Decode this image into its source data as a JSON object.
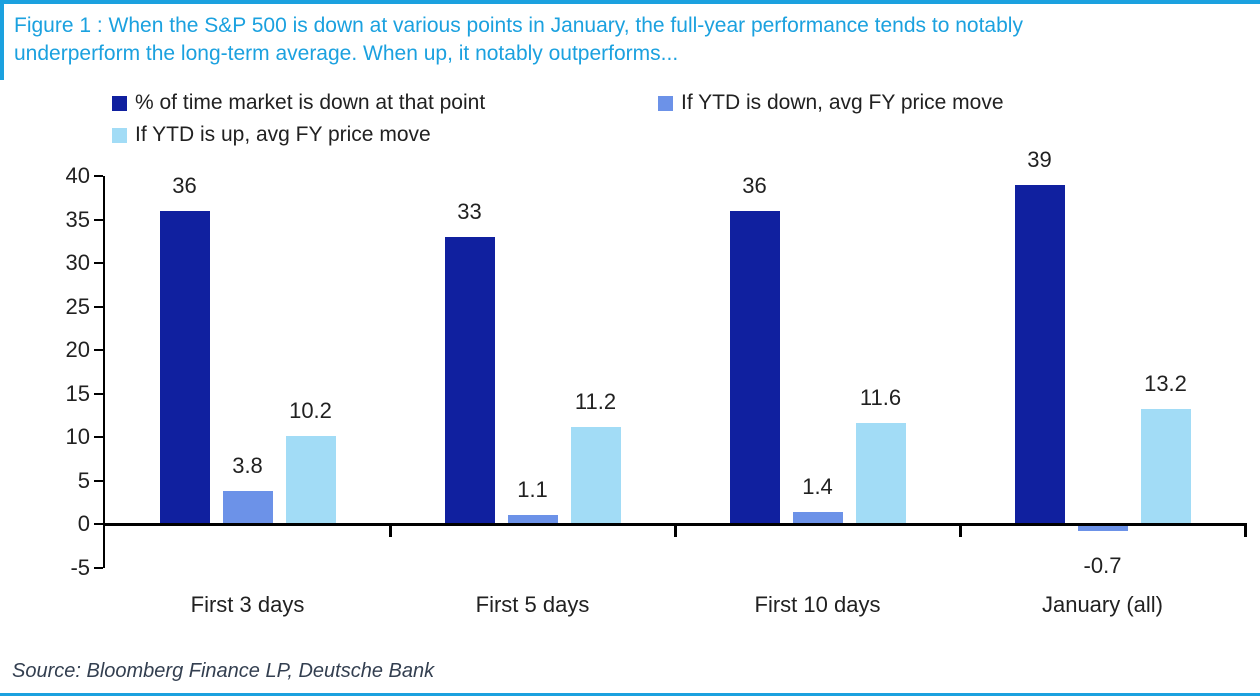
{
  "figure": {
    "title_lines": [
      "Figure 1 : When the S&P 500 is down at various points in January, the full-year performance tends to notably",
      "underperform the long-term average. When up, it notably outperforms..."
    ],
    "source": "Source: Bloomberg Finance LP, Deutsche Bank"
  },
  "colors": {
    "accent_blue": "#1BA1DF",
    "axis": "#000000",
    "text": "#212121",
    "source_text": "#333F50"
  },
  "chart_data": {
    "type": "bar",
    "categories": [
      "First 3 days",
      "First 5 days",
      "First 10 days",
      "January (all)"
    ],
    "series": [
      {
        "name": "% of time market is down at that point",
        "color": "#10209F",
        "values": [
          36,
          33,
          36,
          39
        ]
      },
      {
        "name": "If YTD is down, avg FY price move",
        "color": "#6C92E8",
        "values": [
          3.8,
          1.1,
          1.4,
          -0.7
        ]
      },
      {
        "name": "If YTD is up, avg FY price move",
        "color": "#A2DCF6",
        "values": [
          10.2,
          11.2,
          11.6,
          13.2
        ]
      }
    ],
    "ylim": [
      -5,
      40
    ],
    "ytick_step": 5,
    "grid": false,
    "legend_position": "top",
    "xlabel": "",
    "ylabel": ""
  }
}
